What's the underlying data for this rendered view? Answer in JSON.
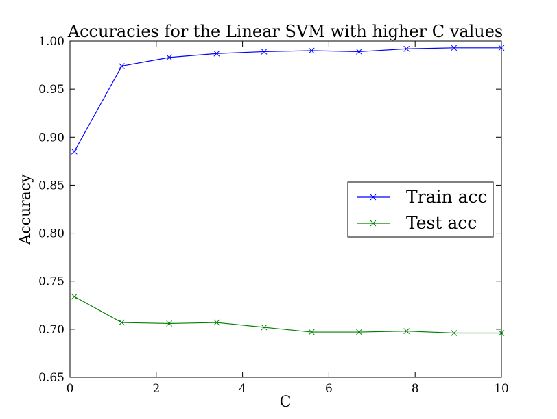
{
  "chart_data": {
    "type": "line",
    "title": "Accuracies for the Linear SVM with higher C values",
    "xlabel": "C",
    "ylabel": "Accuracy",
    "xlim": [
      0,
      10
    ],
    "ylim": [
      0.65,
      1.0
    ],
    "xticks": [
      0,
      2,
      4,
      6,
      8,
      10
    ],
    "xtick_labels": [
      "0",
      "2",
      "4",
      "6",
      "8",
      "10"
    ],
    "yticks": [
      0.65,
      0.7,
      0.75,
      0.8,
      0.85,
      0.9,
      0.95,
      1.0
    ],
    "ytick_labels": [
      "0.65",
      "0.70",
      "0.75",
      "0.80",
      "0.85",
      "0.90",
      "0.95",
      "1.00"
    ],
    "grid": false,
    "legend_position": "center-right",
    "x": [
      0.1,
      1.2,
      2.3,
      3.4,
      4.5,
      5.6,
      6.7,
      7.8,
      8.9,
      10.0
    ],
    "series": [
      {
        "name": "Train acc",
        "color": "#0000ff",
        "marker": "x",
        "values": [
          0.885,
          0.974,
          0.983,
          0.987,
          0.989,
          0.99,
          0.989,
          0.992,
          0.993,
          0.993
        ]
      },
      {
        "name": "Test acc",
        "color": "#008000",
        "marker": "x",
        "values": [
          0.734,
          0.707,
          0.706,
          0.707,
          0.702,
          0.697,
          0.697,
          0.698,
          0.696,
          0.696
        ]
      }
    ]
  }
}
